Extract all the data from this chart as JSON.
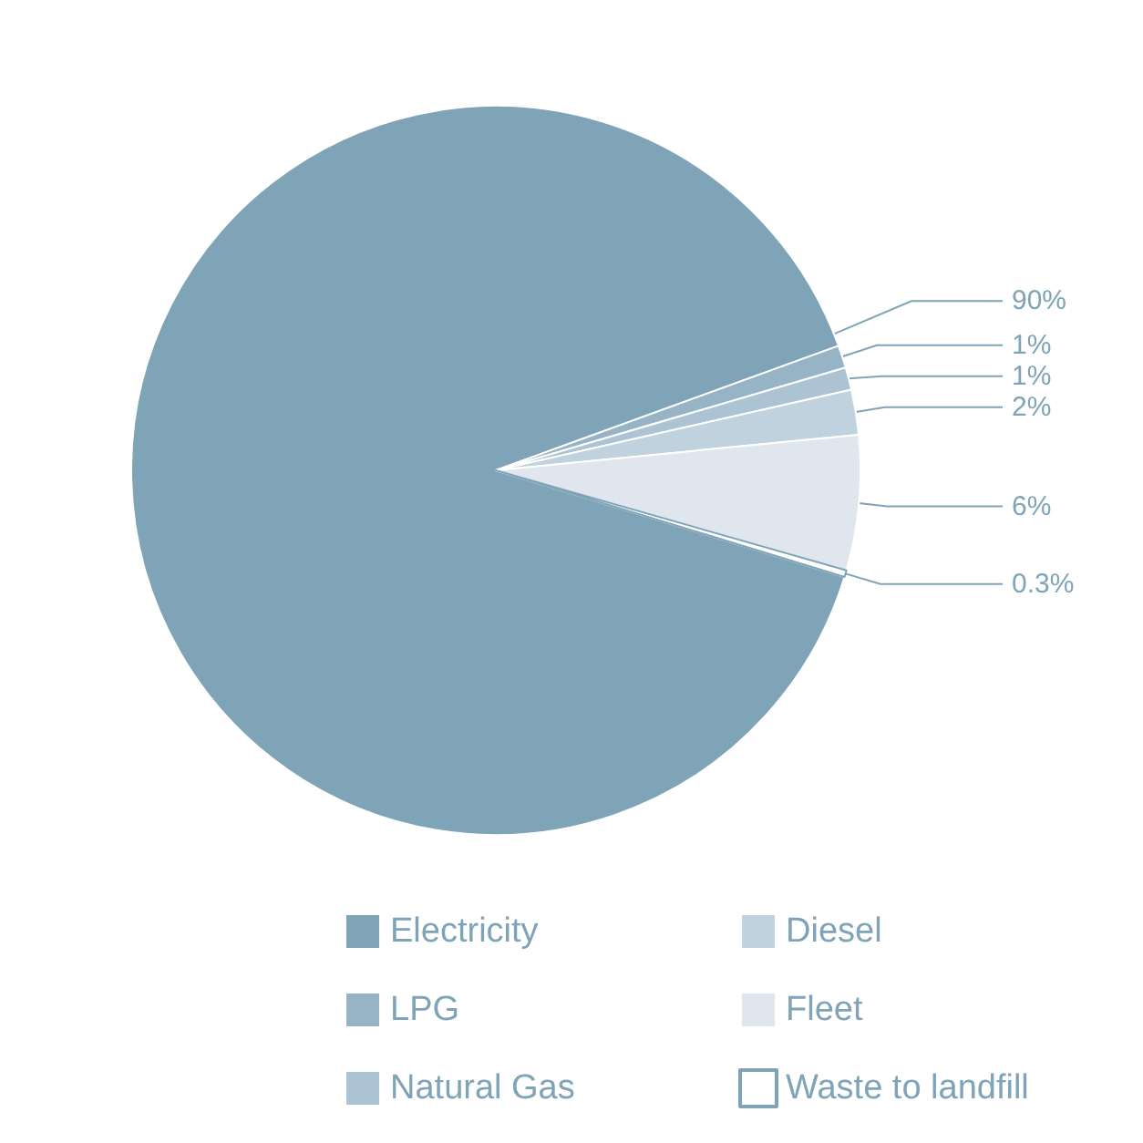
{
  "chart_data": {
    "type": "pie",
    "categories": [
      "Electricity",
      "LPG",
      "Natural Gas",
      "Diesel",
      "Fleet",
      "Waste to landfill"
    ],
    "values": [
      90,
      1,
      1,
      2,
      6,
      0.3
    ],
    "colors": [
      "#7fa3b7",
      "#96b4c6",
      "#abc3d3",
      "#c0d2de",
      "#dfe6ed",
      "#ffffff"
    ],
    "value_labels": [
      "90%",
      "1%",
      "1%",
      "2%",
      "6%",
      "0.3%"
    ],
    "legend": "bottom"
  }
}
